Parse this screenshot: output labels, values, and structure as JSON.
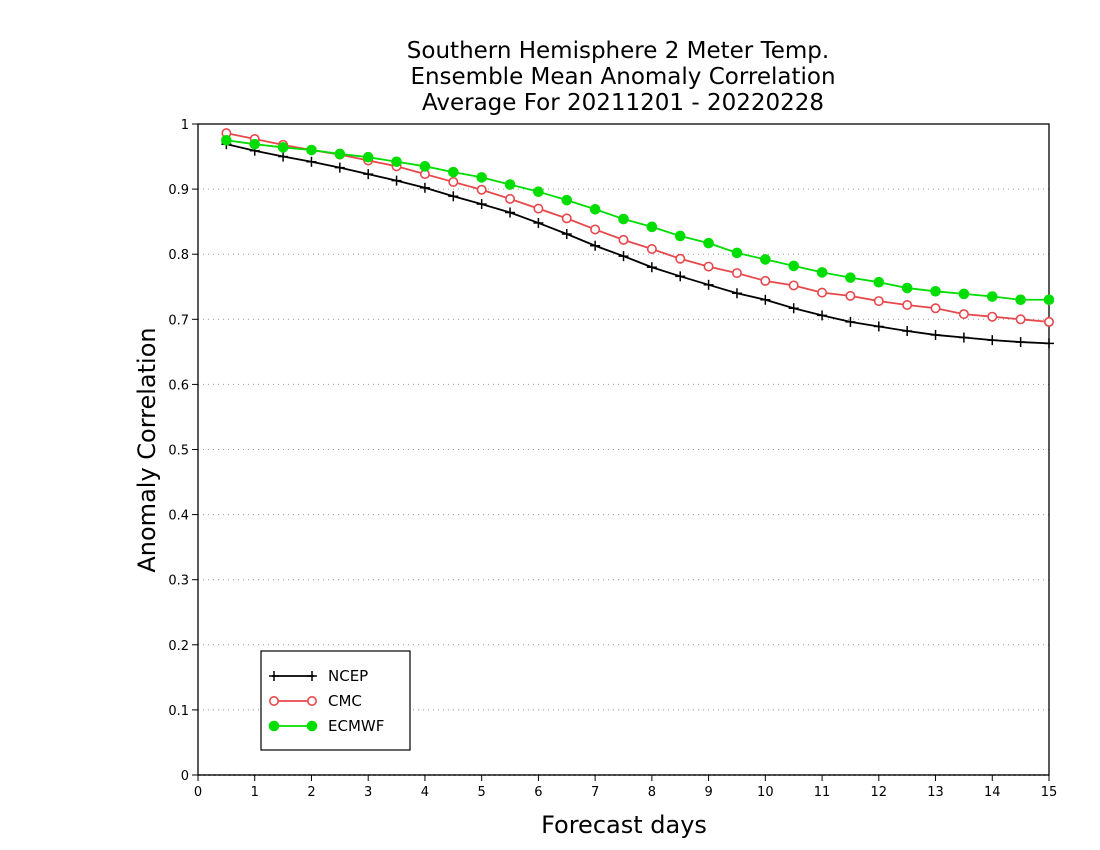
{
  "chart_data": {
    "type": "line",
    "title": [
      "Southern Hemisphere 2 Meter Temp.",
      "Ensemble Mean Anomaly Correlation",
      "Average For 20211201 - 20220228"
    ],
    "xlabel": "Forecast days",
    "ylabel": "Anomaly Correlation",
    "xlim": [
      0,
      15
    ],
    "ylim": [
      0,
      1
    ],
    "xticks": [
      "0",
      "1",
      "2",
      "3",
      "4",
      "5",
      "6",
      "7",
      "8",
      "9",
      "10",
      "11",
      "12",
      "13",
      "14",
      "15"
    ],
    "yticks": [
      "0",
      "0.1",
      "0.2",
      "0.3",
      "0.4",
      "0.5",
      "0.6",
      "0.7",
      "0.8",
      "0.9",
      "1"
    ],
    "grid": "horizontal dotted",
    "legend_position": "bottom-left",
    "x": [
      0.5,
      1,
      1.5,
      2,
      2.5,
      3,
      3.5,
      4,
      4.5,
      5,
      5.5,
      6,
      6.5,
      7,
      7.5,
      8,
      8.5,
      9,
      9.5,
      10,
      10.5,
      11,
      11.5,
      12,
      12.5,
      13,
      13.5,
      14,
      14.5,
      15
    ],
    "series": [
      {
        "name": "NCEP",
        "color": "#000000",
        "marker": "plus",
        "values": [
          0.969,
          0.959,
          0.95,
          0.942,
          0.933,
          0.923,
          0.913,
          0.902,
          0.889,
          0.877,
          0.864,
          0.848,
          0.831,
          0.813,
          0.797,
          0.78,
          0.766,
          0.753,
          0.74,
          0.73,
          0.717,
          0.706,
          0.696,
          0.689,
          0.682,
          0.676,
          0.672,
          0.668,
          0.665,
          0.663
        ]
      },
      {
        "name": "CMC",
        "color": "#e8484c",
        "marker": "open-circle",
        "values": [
          0.986,
          0.977,
          0.968,
          0.96,
          0.953,
          0.944,
          0.935,
          0.923,
          0.911,
          0.899,
          0.885,
          0.87,
          0.855,
          0.838,
          0.822,
          0.808,
          0.793,
          0.781,
          0.771,
          0.759,
          0.752,
          0.741,
          0.736,
          0.728,
          0.722,
          0.717,
          0.708,
          0.704,
          0.7,
          0.696
        ]
      },
      {
        "name": "ECMWF",
        "color": "#00dd00",
        "marker": "filled-circle",
        "values": [
          0.975,
          0.969,
          0.964,
          0.96,
          0.954,
          0.949,
          0.942,
          0.935,
          0.926,
          0.918,
          0.907,
          0.896,
          0.883,
          0.869,
          0.854,
          0.842,
          0.828,
          0.817,
          0.802,
          0.792,
          0.782,
          0.772,
          0.764,
          0.757,
          0.748,
          0.743,
          0.739,
          0.735,
          0.73,
          0.73
        ]
      }
    ]
  }
}
